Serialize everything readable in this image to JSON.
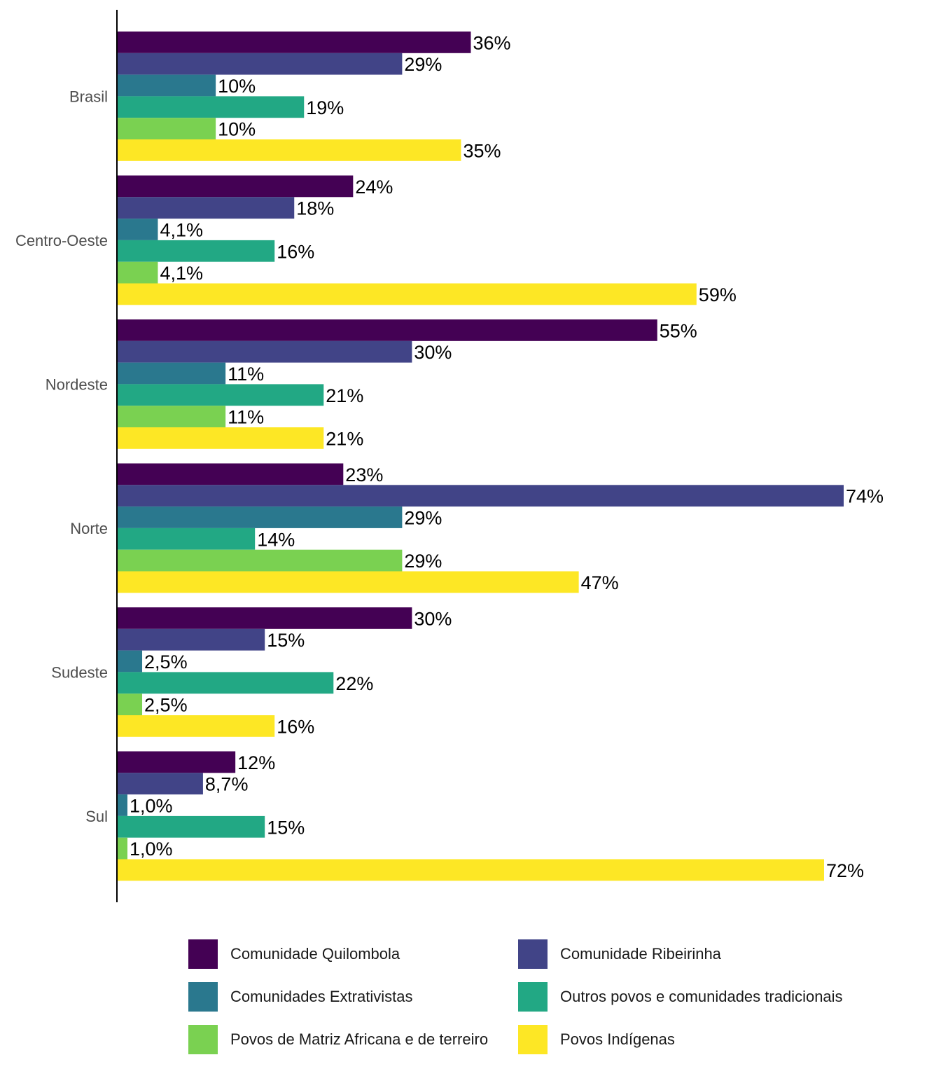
{
  "chart_data": {
    "type": "bar",
    "orientation": "horizontal",
    "categories": [
      "Brasil",
      "Centro-Oeste",
      "Nordeste",
      "Norte",
      "Sudeste",
      "Sul"
    ],
    "series": [
      {
        "name": "Comunidade Quilombola",
        "color": "#440154",
        "values": [
          36,
          24,
          55,
          23,
          30,
          12
        ],
        "labels": [
          "36%",
          "24%",
          "55%",
          "23%",
          "30%",
          "12%"
        ]
      },
      {
        "name": "Comunidade Ribeirinha",
        "color": "#414487",
        "values": [
          29,
          18,
          30,
          74,
          15,
          8.7
        ],
        "labels": [
          "29%",
          "18%",
          "30%",
          "74%",
          "15%",
          "8,7%"
        ]
      },
      {
        "name": "Comunidades Extrativistas",
        "color": "#2a788e",
        "values": [
          10,
          4.1,
          11,
          29,
          2.5,
          1.0
        ],
        "labels": [
          "10%",
          "4,1%",
          "11%",
          "29%",
          "2,5%",
          "1,0%"
        ]
      },
      {
        "name": "Outros povos e comunidades tradicionais",
        "color": "#22a884",
        "values": [
          19,
          16,
          21,
          14,
          22,
          15
        ],
        "labels": [
          "19%",
          "16%",
          "21%",
          "14%",
          "22%",
          "15%"
        ]
      },
      {
        "name": "Povos de Matriz Africana e de terreiro",
        "color": "#7ad151",
        "values": [
          10,
          4.1,
          11,
          29,
          2.5,
          1.0
        ],
        "labels": [
          "10%",
          "4,1%",
          "11%",
          "29%",
          "2,5%",
          "1,0%"
        ]
      },
      {
        "name": "Povos Indígenas",
        "color": "#fde725",
        "values": [
          35,
          59,
          21,
          47,
          16,
          72
        ],
        "labels": [
          "35%",
          "59%",
          "21%",
          "47%",
          "16%",
          "72%"
        ]
      }
    ],
    "xlim": [
      0,
      74
    ],
    "xaxis_shown": false,
    "grid": false,
    "legend_position": "bottom"
  }
}
